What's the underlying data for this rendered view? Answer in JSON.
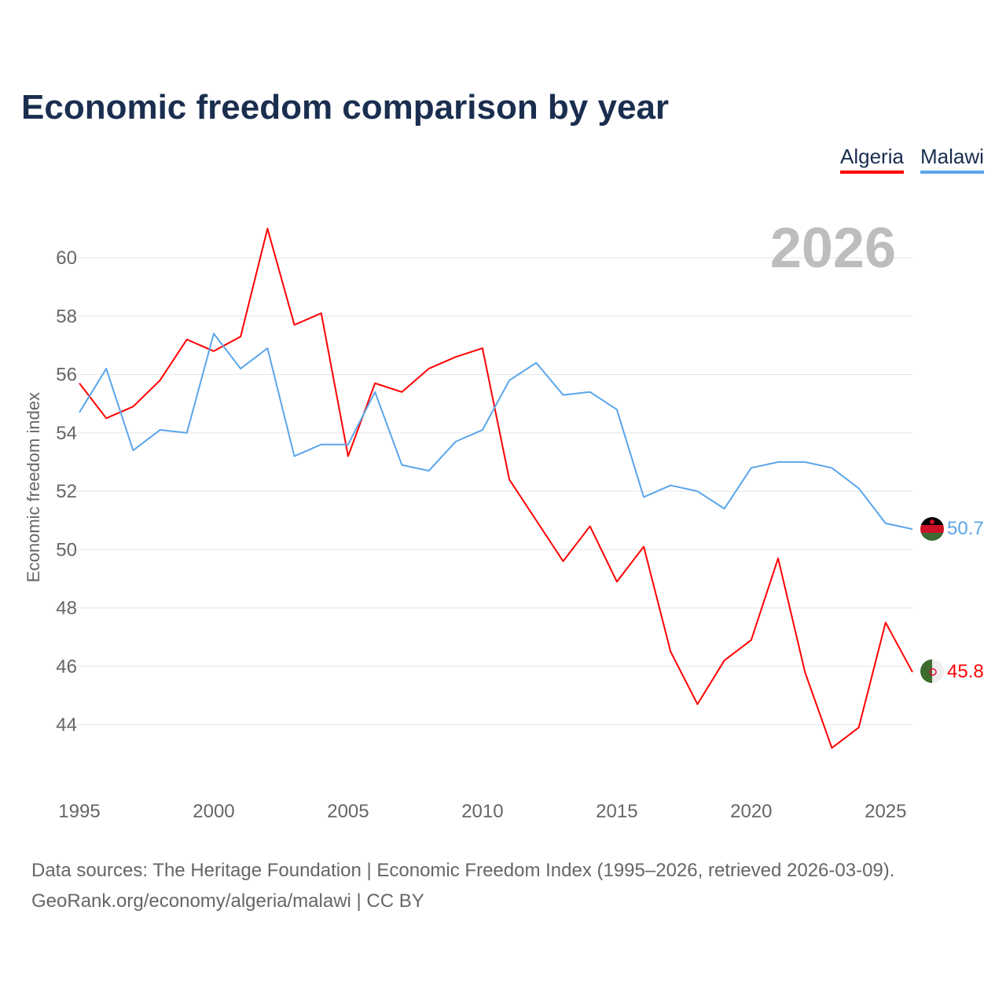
{
  "title": "Economic freedom comparison by year",
  "year_watermark": "2026",
  "footer": {
    "line1": "Data sources: The Heritage Foundation | Economic Freedom Index (1995–2026, retrieved 2026-03-09).",
    "line2": "GeoRank.org/economy/algeria/malawi | CC BY"
  },
  "chart_data": {
    "type": "line",
    "title": "Economic freedom comparison by year",
    "xlabel": "",
    "ylabel": "Economic freedom index",
    "xlim": [
      1995,
      2026
    ],
    "ylim": [
      42,
      62
    ],
    "grid": true,
    "legend_placement": "top-right",
    "x_ticks": [
      "1995",
      "2000",
      "2005",
      "2010",
      "2015",
      "2020",
      "2025"
    ],
    "y_ticks": [
      "44",
      "46",
      "48",
      "50",
      "52",
      "54",
      "56",
      "58",
      "60"
    ],
    "x": [
      1995,
      1996,
      1997,
      1998,
      1999,
      2000,
      2001,
      2002,
      2003,
      2004,
      2005,
      2006,
      2007,
      2008,
      2009,
      2010,
      2011,
      2012,
      2013,
      2014,
      2015,
      2016,
      2017,
      2018,
      2019,
      2020,
      2021,
      2022,
      2023,
      2024,
      2025,
      2026
    ],
    "series": [
      {
        "name": "Algeria",
        "color": "#ff0000",
        "end_label": "45.8",
        "values": [
          55.7,
          54.5,
          54.9,
          55.8,
          57.2,
          56.8,
          57.3,
          61.0,
          57.7,
          58.1,
          53.2,
          55.7,
          55.4,
          56.2,
          56.6,
          56.9,
          52.4,
          51.0,
          49.6,
          50.8,
          48.9,
          50.1,
          46.5,
          44.7,
          46.2,
          46.9,
          49.7,
          45.8,
          43.2,
          43.9,
          47.5,
          45.8
        ]
      },
      {
        "name": "Malawi",
        "color": "#5aa5ea",
        "end_label": "50.7",
        "values": [
          54.7,
          56.2,
          53.4,
          54.1,
          54.0,
          57.4,
          56.2,
          56.9,
          53.2,
          53.6,
          53.6,
          55.4,
          52.9,
          52.7,
          53.7,
          54.1,
          55.8,
          56.4,
          55.3,
          55.4,
          54.8,
          51.8,
          52.2,
          52.0,
          51.4,
          52.8,
          53.0,
          53.0,
          52.8,
          52.1,
          50.9,
          50.7
        ]
      }
    ]
  }
}
